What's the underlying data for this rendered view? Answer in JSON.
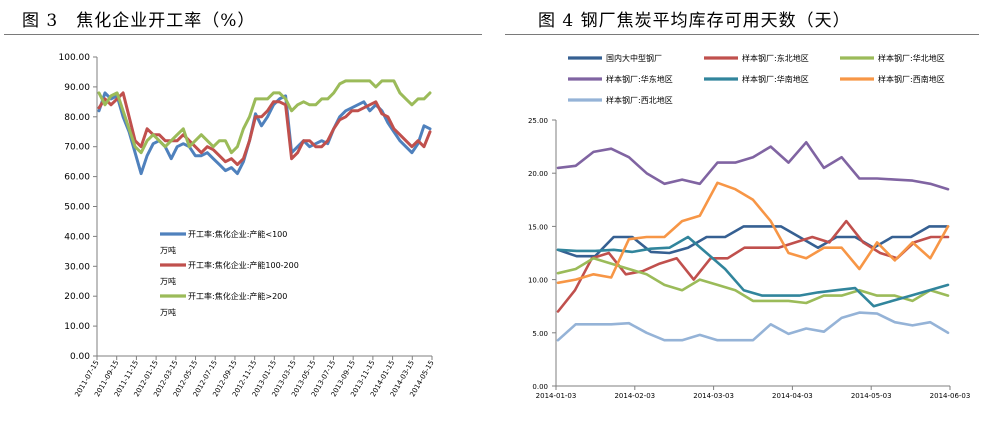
{
  "figure_titles": {
    "left": "图 3　焦化企业开工率（%）",
    "right": "图 4 钢厂焦炭平均库存可用天数（天）"
  },
  "chart_data": [
    {
      "type": "line",
      "title": "图 3　焦化企业开工率（%）",
      "ylim": [
        0,
        100
      ],
      "y_ticks": [
        "0.00",
        "10.00",
        "20.00",
        "30.00",
        "40.00",
        "50.00",
        "60.00",
        "70.00",
        "80.00",
        "90.00",
        "100.00"
      ],
      "x_ticks": [
        "2011-07-15",
        "2011-09-15",
        "2011-11-15",
        "2012-01-15",
        "2012-03-15",
        "2012-05-15",
        "2012-07-15",
        "2012-09-15",
        "2012-11-15",
        "2013-01-15",
        "2013-03-15",
        "2013-05-15",
        "2013-07-15",
        "2013-09-15",
        "2013-11-15",
        "2014-01-15",
        "2014-03-15",
        "2014-05-15"
      ],
      "grid": false,
      "legend": "center-left, stacked",
      "series": [
        {
          "name": "开工率:焦化企业:产能<100万吨",
          "color": "#4f81bd",
          "values": [
            82,
            88,
            86,
            87,
            80,
            75,
            68,
            61,
            67,
            71,
            72,
            70,
            66,
            70,
            71,
            70,
            67,
            67,
            68,
            66,
            64,
            62,
            63,
            61,
            65,
            72,
            81,
            77,
            80,
            84,
            86,
            87,
            68,
            70,
            72,
            70,
            71,
            72,
            71,
            76,
            80,
            82,
            83,
            84,
            85,
            82,
            84,
            82,
            78,
            75,
            72,
            70,
            68,
            71,
            77,
            76
          ]
        },
        {
          "name": "开工率:焦化企业:产能100-200万吨",
          "color": "#c0504d",
          "values": [
            83,
            86,
            84,
            86,
            88,
            80,
            72,
            70,
            76,
            74,
            74,
            72,
            72,
            72,
            74,
            72,
            70,
            68,
            70,
            69,
            67,
            65,
            66,
            64,
            66,
            72,
            80,
            80,
            82,
            85,
            85,
            84,
            66,
            68,
            72,
            72,
            70,
            70,
            72,
            76,
            79,
            80,
            82,
            82,
            83,
            84,
            85,
            81,
            80,
            76,
            74,
            72,
            70,
            72,
            70,
            75
          ]
        },
        {
          "name": "开工率:焦化企业:产能>200万吨",
          "color": "#9bbb59",
          "values": [
            88,
            84,
            87,
            88,
            82,
            76,
            70,
            68,
            72,
            74,
            72,
            70,
            72,
            74,
            76,
            70,
            72,
            74,
            72,
            70,
            72,
            72,
            68,
            70,
            76,
            80,
            86,
            86,
            86,
            88,
            88,
            86,
            82,
            84,
            85,
            84,
            84,
            86,
            86,
            88,
            91,
            92,
            92,
            92,
            92,
            92,
            90,
            92,
            92,
            92,
            88,
            86,
            84,
            86,
            86,
            88
          ]
        }
      ]
    },
    {
      "type": "line",
      "title": "图 4 钢厂焦炭平均库存可用天数（天）",
      "ylim": [
        0,
        25
      ],
      "y_ticks": [
        "0.00",
        "5.00",
        "10.00",
        "15.00",
        "20.00",
        "25.00"
      ],
      "x_ticks": [
        "2014-01-03",
        "2014-02-03",
        "2014-03-03",
        "2014-04-03",
        "2014-05-03",
        "2014-06-03"
      ],
      "grid": false,
      "legend": "top, 3 columns",
      "series": [
        {
          "name": "国内大中型钢厂",
          "color": "#366092",
          "values": [
            12.8,
            12.2,
            12.2,
            14.0,
            14.0,
            12.6,
            12.5,
            13.0,
            14.0,
            14.0,
            15.0,
            15.0,
            15.0,
            14.0,
            13.0,
            14.0,
            14.0,
            13.0,
            14.0,
            14.0,
            15.0,
            15.0
          ]
        },
        {
          "name": "样本钢厂:东北地区",
          "color": "#c0504d",
          "values": [
            7.0,
            9.0,
            12.0,
            12.5,
            10.5,
            10.8,
            11.5,
            12.0,
            10.0,
            12.0,
            12.0,
            13.0,
            13.0,
            13.0,
            13.5,
            14.0,
            13.5,
            15.5,
            13.5,
            12.5,
            12.0,
            13.5,
            14.0,
            14.0
          ]
        },
        {
          "name": "样本钢厂:华北地区",
          "color": "#9bbb59",
          "values": [
            10.6,
            11.0,
            12.0,
            11.5,
            11.0,
            10.5,
            9.5,
            9.0,
            10.0,
            9.5,
            9.0,
            8.0,
            8.0,
            8.0,
            7.8,
            8.5,
            8.5,
            9.0,
            8.5,
            8.5,
            8.0,
            9.0,
            8.5
          ]
        },
        {
          "name": "样本钢厂:华东地区",
          "color": "#8064a2",
          "values": [
            20.5,
            20.7,
            22.0,
            22.3,
            21.5,
            20.0,
            19.0,
            19.4,
            19.0,
            21.0,
            21.0,
            21.5,
            22.5,
            21.0,
            22.9,
            20.5,
            21.5,
            19.5,
            19.5,
            19.4,
            19.3,
            19.0,
            18.5
          ]
        },
        {
          "name": "样本钢厂:华南地区",
          "color": "#31859c",
          "values": [
            12.8,
            12.7,
            12.7,
            12.8,
            12.6,
            12.9,
            13.0,
            14.0,
            12.5,
            11.0,
            9.0,
            8.5,
            8.5,
            8.5,
            8.8,
            9.0,
            9.2,
            7.5,
            8.0,
            8.5,
            9.0,
            9.5
          ]
        },
        {
          "name": "样本钢厂:西南地区",
          "color": "#f79646",
          "values": [
            9.7,
            10.0,
            10.5,
            10.2,
            13.8,
            14.0,
            14.0,
            15.5,
            16.0,
            19.1,
            18.5,
            17.5,
            15.5,
            12.5,
            12.0,
            13.0,
            13.0,
            11.0,
            13.5,
            11.8,
            13.5,
            12.0,
            15.0
          ]
        },
        {
          "name": "样本钢厂:西北地区",
          "color": "#95b3d7",
          "values": [
            4.3,
            5.8,
            5.8,
            5.8,
            5.9,
            5.0,
            4.3,
            4.3,
            4.8,
            4.3,
            4.3,
            4.3,
            5.8,
            4.9,
            5.4,
            5.1,
            6.4,
            6.9,
            6.8,
            6.0,
            5.7,
            6.0,
            5.0
          ]
        }
      ]
    }
  ]
}
